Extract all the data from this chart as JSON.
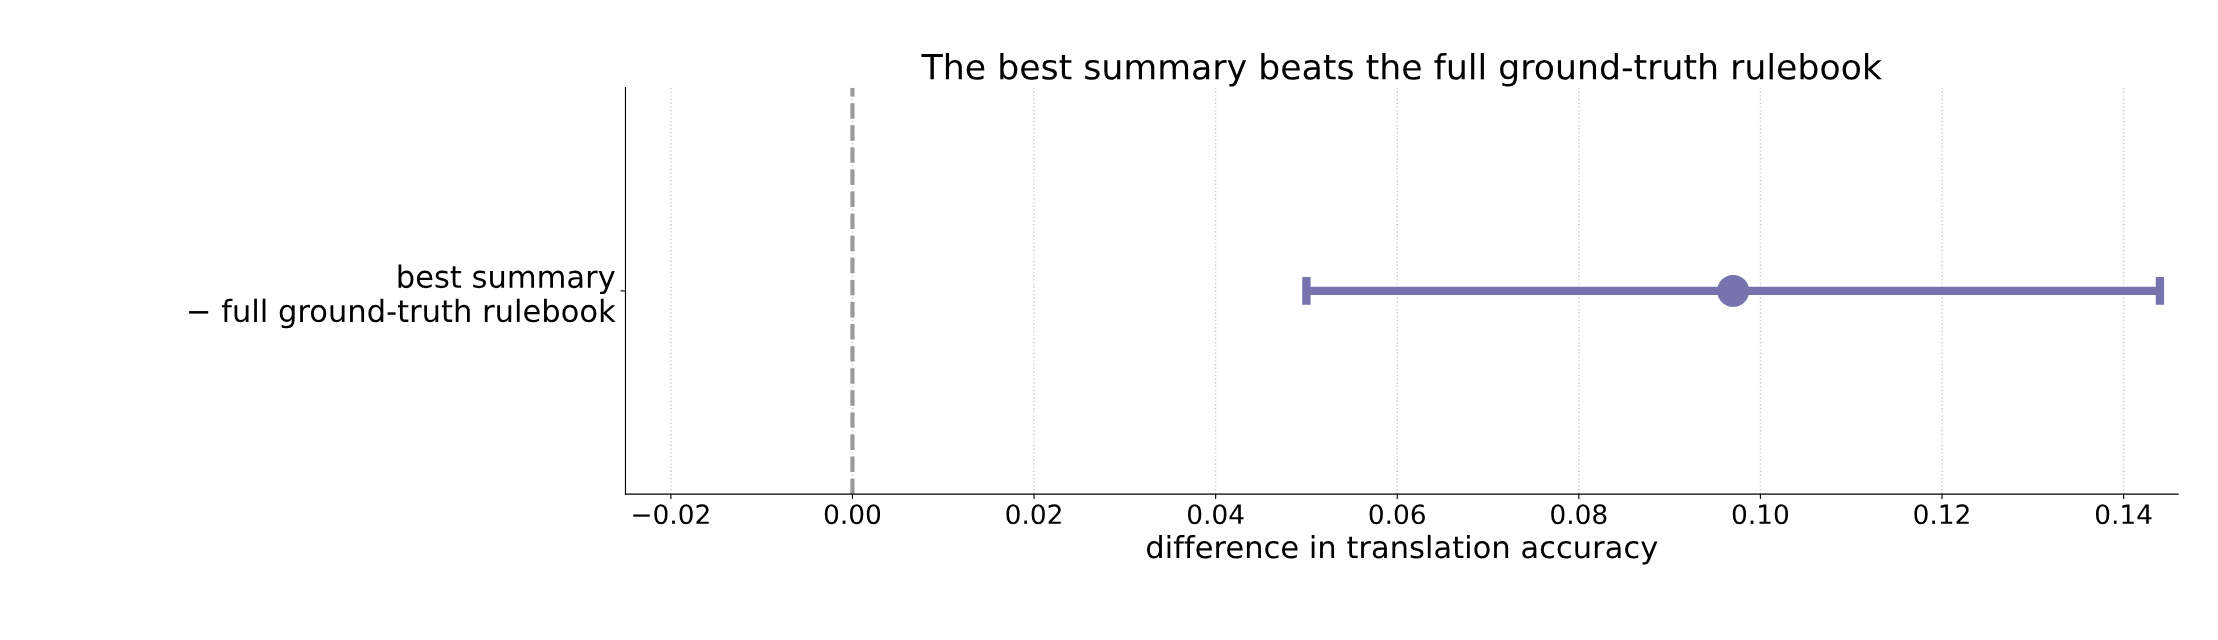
{
  "chart_data": {
    "type": "scatter",
    "orientation": "horizontal",
    "title": "The best summary beats the full ground-truth rulebook",
    "xlabel": "difference in translation accuracy",
    "categories": [
      "best summary\n− full ground-truth rulebook"
    ],
    "values": [
      0.097
    ],
    "errors": [
      0.047
    ],
    "color": "#7673ae",
    "marker": "circle",
    "xlim": [
      -0.025,
      0.146
    ],
    "xticks": [
      {
        "value": -0.02,
        "label": "−0.02"
      },
      {
        "value": 0.0,
        "label": "0.00"
      },
      {
        "value": 0.02,
        "label": "0.02"
      },
      {
        "value": 0.04,
        "label": "0.04"
      },
      {
        "value": 0.06,
        "label": "0.06"
      },
      {
        "value": 0.08,
        "label": "0.08"
      },
      {
        "value": 0.1,
        "label": "0.10"
      },
      {
        "value": 0.12,
        "label": "0.12"
      },
      {
        "value": 0.14,
        "label": "0.14"
      }
    ],
    "ref_lines": [
      {
        "axis": "x",
        "value": 0,
        "color": "#999999",
        "line_style": "dashed"
      }
    ],
    "grid": "x"
  }
}
